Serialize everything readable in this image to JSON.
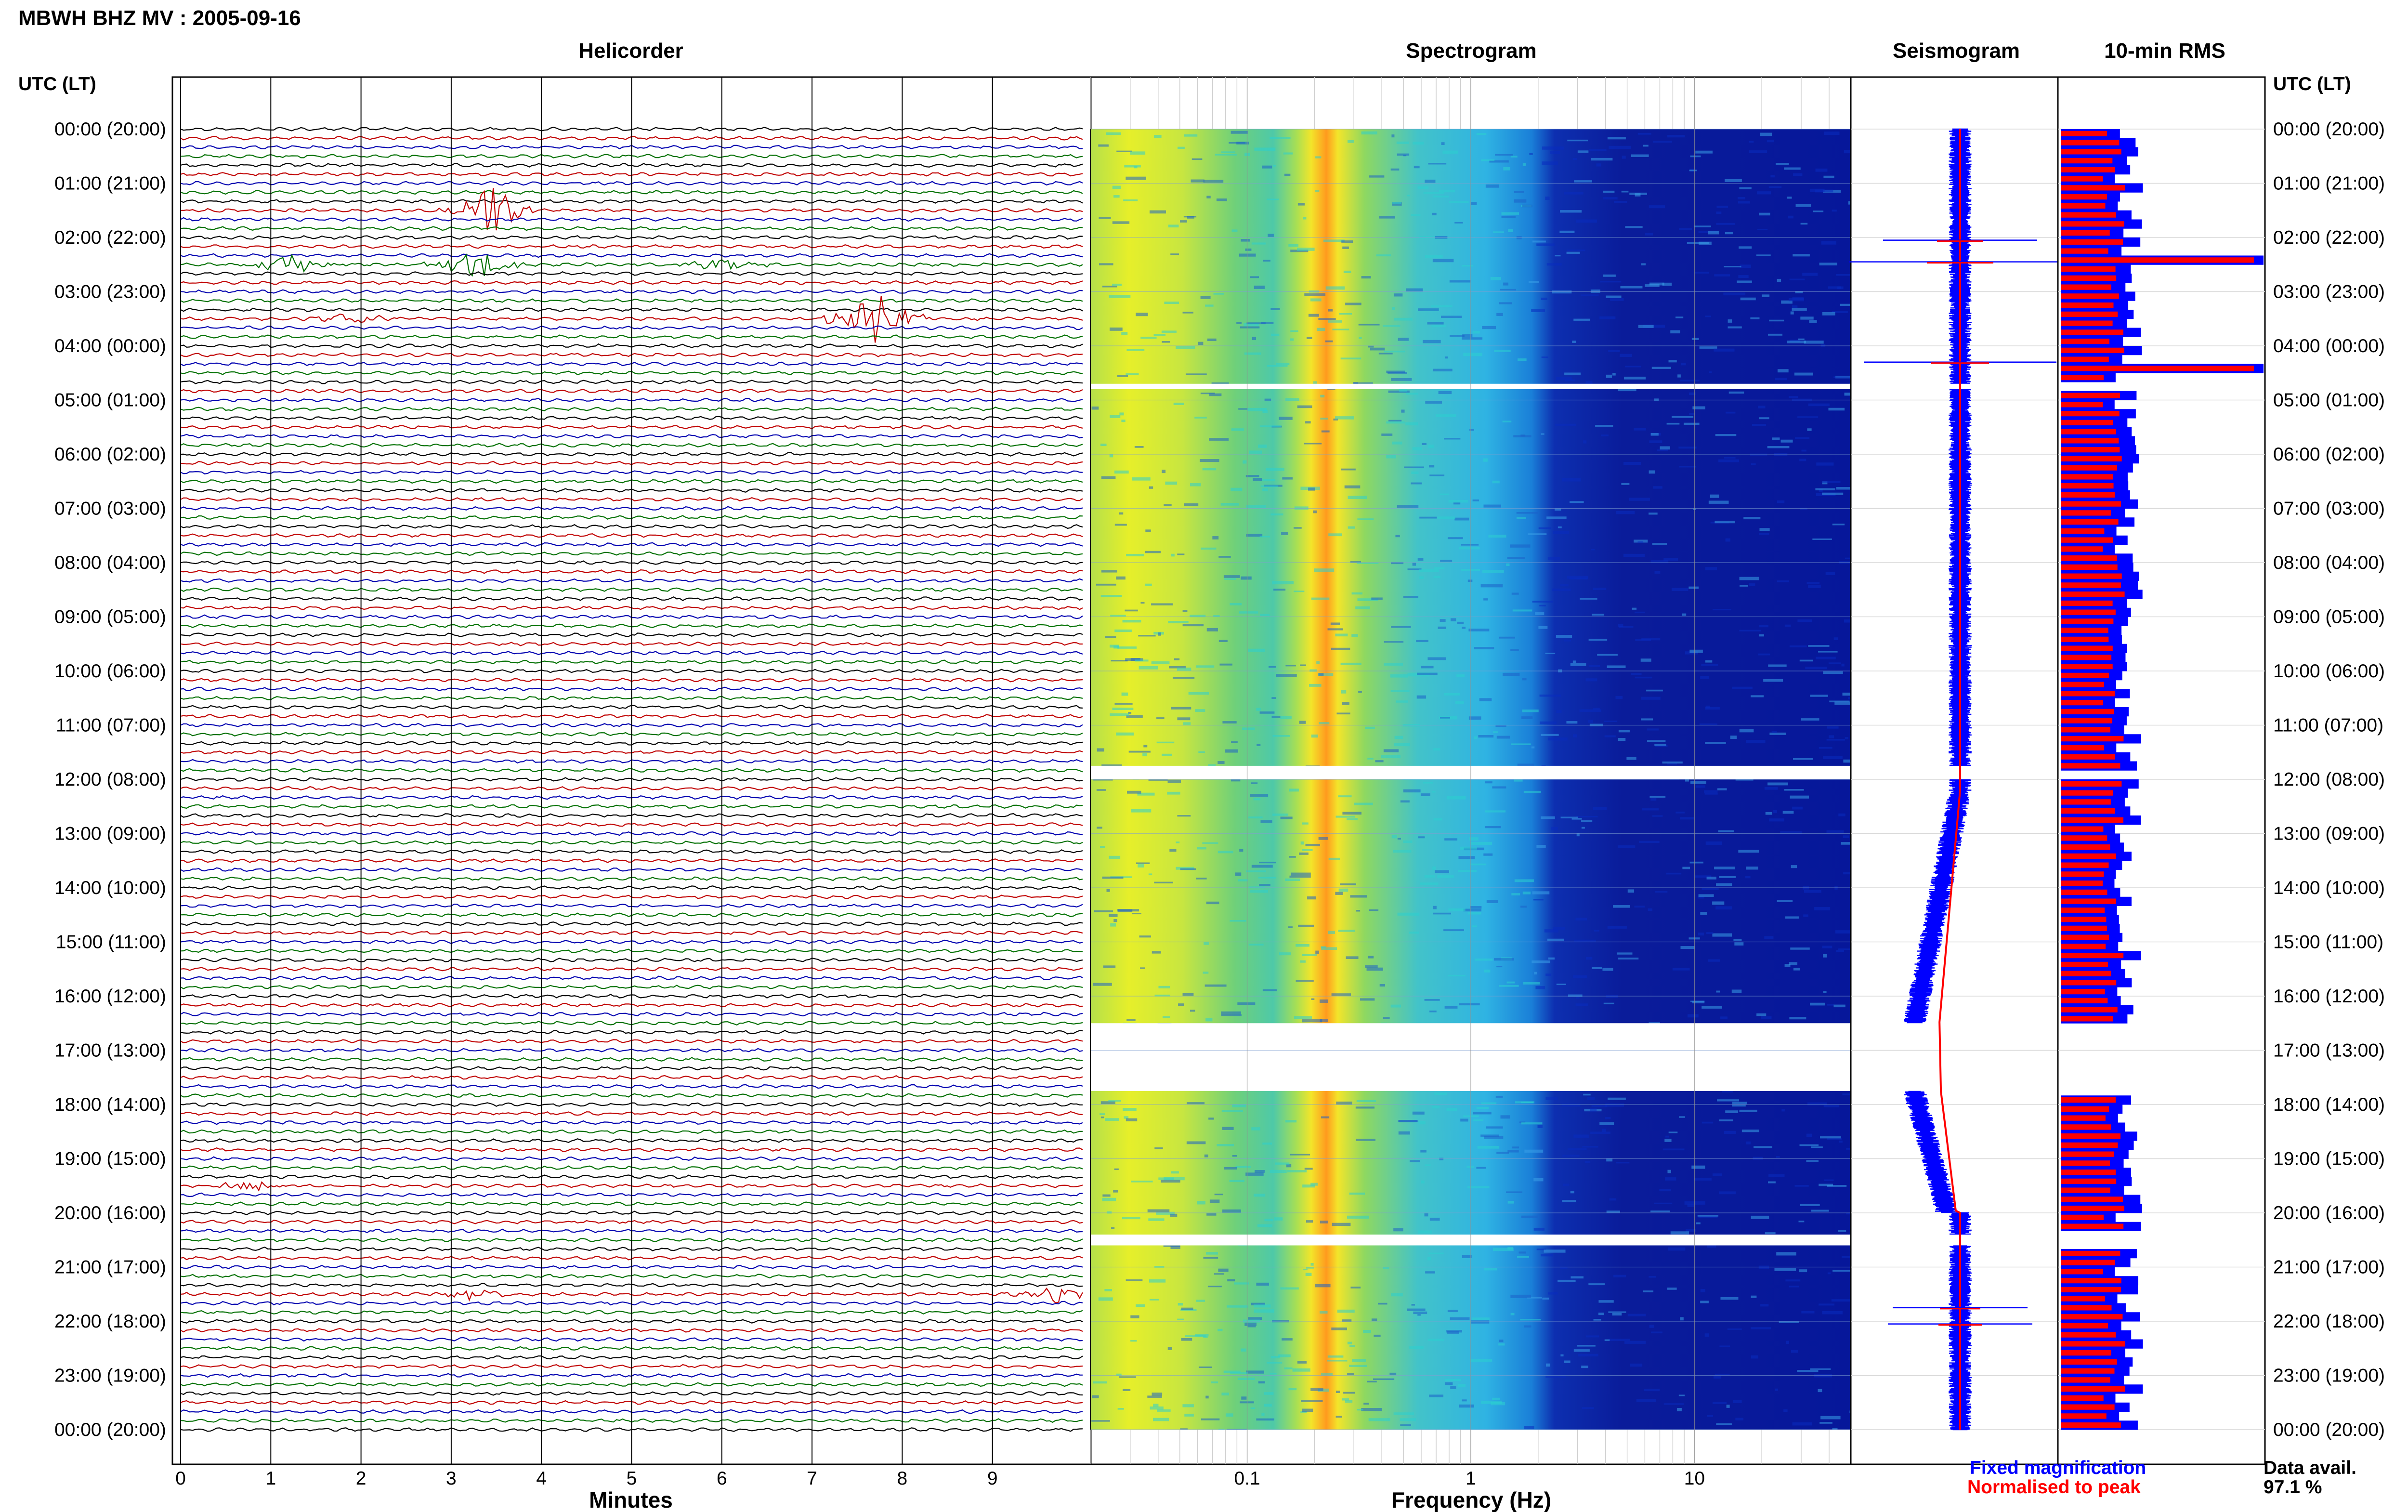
{
  "header": {
    "title": "MBWH BHZ MV : 2005-09-16",
    "utc_left": "UTC (LT)",
    "utc_right": "UTC (LT)"
  },
  "panels": {
    "helicorder": "Helicorder",
    "spectrogram": "Spectrogram",
    "seismogram": "Seismogram",
    "rms": "10-min RMS"
  },
  "chart_data": [
    {
      "type": "line",
      "name": "helicorder",
      "title": "Helicorder",
      "xlabel": "Minutes",
      "xlim": [
        0,
        10
      ],
      "xticks": [
        "0",
        "1",
        "2",
        "3",
        "4",
        "5",
        "6",
        "7",
        "8",
        "9"
      ],
      "row_interval_minutes": 10,
      "trace_colors": [
        "#000000",
        "#c00000",
        "#0000b0",
        "#007000"
      ],
      "events": [
        {
          "hour": 1,
          "minute": 3.4,
          "amplitude": 5,
          "color": "#007000"
        },
        {
          "hour": 2,
          "minute": 1.2,
          "amplitude": 2,
          "color": "#007000"
        },
        {
          "hour": 2,
          "minute": 3.3,
          "amplitude": 3,
          "color": "#007000"
        },
        {
          "hour": 2,
          "minute": 6.0,
          "amplitude": 1.5,
          "color": "#000000"
        },
        {
          "hour": 3,
          "minute": 7.7,
          "amplitude": 4.5,
          "color": "#c00000"
        },
        {
          "hour": 3,
          "minute": 1.9,
          "amplitude": 1.2,
          "color": "#000000"
        },
        {
          "hour": 19,
          "minute": 0.8,
          "amplitude": 1.0,
          "color": "#0000b0"
        },
        {
          "hour": 21,
          "minute": 3.3,
          "amplitude": 1.5,
          "color": "#0000b0"
        },
        {
          "hour": 21,
          "minute": 9.7,
          "amplitude": 1.2,
          "color": "#c00000"
        }
      ]
    },
    {
      "type": "heatmap",
      "name": "spectrogram",
      "title": "Spectrogram",
      "xlabel": "Frequency (Hz)",
      "xscale": "log",
      "xlim": [
        0.02,
        50
      ],
      "xticks": [
        "0.1",
        "1",
        "10"
      ],
      "data_gaps_utc": [
        [
          11.75,
          12.0
        ],
        [
          16.5,
          17.75
        ],
        [
          20.4,
          20.6
        ],
        [
          4.7,
          4.8
        ]
      ]
    },
    {
      "type": "line",
      "name": "seismogram",
      "title": "Seismogram",
      "series": [
        {
          "name": "Fixed magnification",
          "color": "#0000ff"
        },
        {
          "name": "Normalised to peak",
          "color": "#ff0000"
        }
      ]
    },
    {
      "type": "bar",
      "name": "rms",
      "title": "10-min RMS",
      "orientation": "horizontal",
      "series": [
        {
          "name": "Fixed magnification",
          "color": "#0000ff"
        },
        {
          "name": "Normalised to peak",
          "color": "#ff0000"
        }
      ],
      "peaks_utc": [
        2.4,
        4.3
      ]
    }
  ],
  "time_labels": [
    "00:00 (20:00)",
    "01:00 (21:00)",
    "02:00 (22:00)",
    "03:00 (23:00)",
    "04:00 (00:00)",
    "05:00 (01:00)",
    "06:00 (02:00)",
    "07:00 (03:00)",
    "08:00 (04:00)",
    "09:00 (05:00)",
    "10:00 (06:00)",
    "11:00 (07:00)",
    "12:00 (08:00)",
    "13:00 (09:00)",
    "14:00 (10:00)",
    "15:00 (11:00)",
    "16:00 (12:00)",
    "17:00 (13:00)",
    "18:00 (14:00)",
    "19:00 (15:00)",
    "20:00 (16:00)",
    "21:00 (17:00)",
    "22:00 (18:00)",
    "23:00 (19:00)",
    "00:00 (20:00)"
  ],
  "legend": {
    "fixed": "Fixed magnification",
    "normalised": "Normalised to peak",
    "fixed_color": "#0000ff",
    "normalised_color": "#ff0000"
  },
  "data_avail": {
    "label": "Data avail.",
    "value": "97.1 %"
  }
}
